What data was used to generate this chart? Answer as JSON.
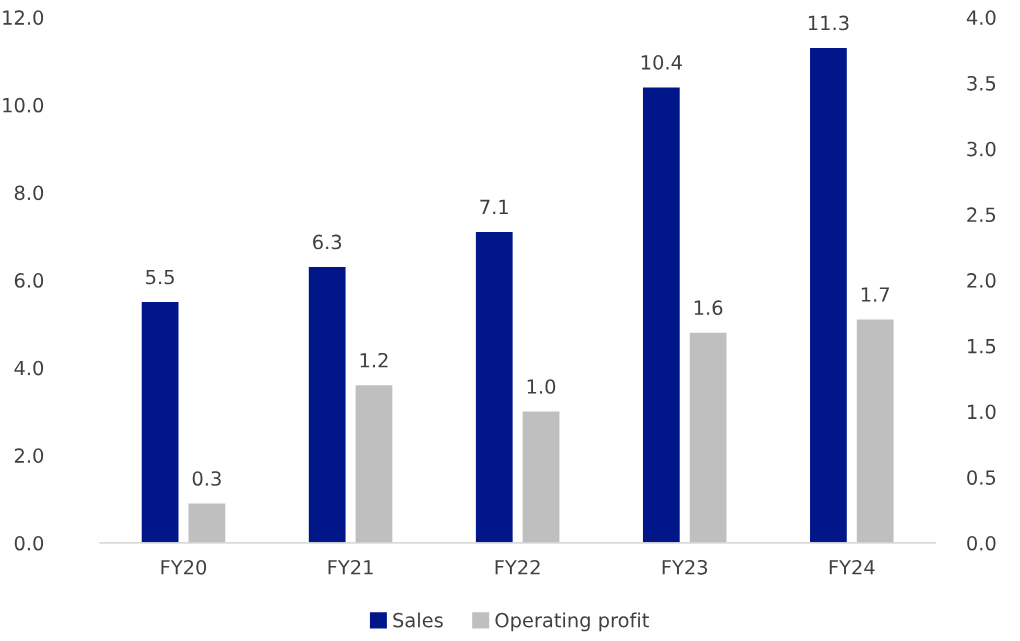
{
  "chart_data": {
    "type": "bar",
    "categories": [
      "FY20",
      "FY21",
      "FY22",
      "FY23",
      "FY24"
    ],
    "series": [
      {
        "name": "Sales",
        "color": "#001689",
        "values": [
          5.5,
          6.3,
          7.1,
          10.4,
          11.3
        ],
        "value_labels": [
          "5.5",
          "6.3",
          "7.1",
          "10.4",
          "11.3"
        ]
      },
      {
        "name": "Operating profit",
        "color": "#bfbfbf",
        "axis": "y2",
        "values": [
          0.3,
          1.2,
          1.0,
          1.6,
          1.7
        ],
        "value_labels": [
          "0.3",
          "1.2",
          "1.0",
          "1.6",
          "1.7"
        ]
      }
    ],
    "ylim": [
      0,
      12
    ],
    "yticks": [
      {
        "value": 0,
        "label": "0.0"
      },
      {
        "value": 2,
        "label": "2.0"
      },
      {
        "value": 4,
        "label": "4.0"
      },
      {
        "value": 6,
        "label": "6.0"
      },
      {
        "value": 8,
        "label": "8.0"
      },
      {
        "value": 10,
        "label": "10.0"
      },
      {
        "value": 12,
        "label": "12.0"
      }
    ],
    "y2lim": [
      0,
      4
    ],
    "y2ticks": [
      {
        "value": 0,
        "label": "0.0"
      },
      {
        "value": 0.5,
        "label": "0.5"
      },
      {
        "value": 1,
        "label": "1.0"
      },
      {
        "value": 1.5,
        "label": "1.5"
      },
      {
        "value": 2,
        "label": "2.0"
      },
      {
        "value": 2.5,
        "label": "2.5"
      },
      {
        "value": 3,
        "label": "3.0"
      },
      {
        "value": 3.5,
        "label": "3.5"
      },
      {
        "value": 4,
        "label": "4.0"
      }
    ],
    "grid": false,
    "legend": "bottom"
  }
}
